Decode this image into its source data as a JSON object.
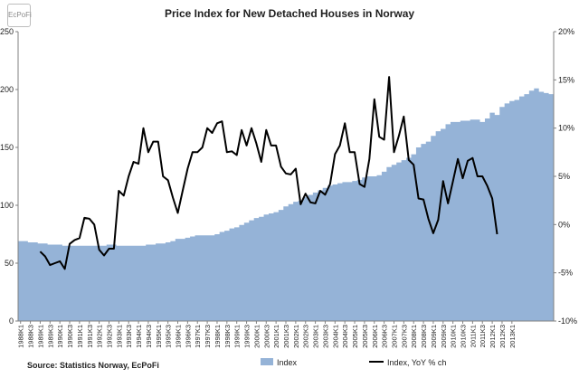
{
  "chart_data": {
    "type": "area",
    "title": "Price Index for New Detached Houses in Norway",
    "logo_text": "EcPoFi",
    "source": "Source: Statistics Norway, EcPoFi",
    "y_left": {
      "lim": [
        0,
        250
      ],
      "ticks": [
        "0",
        "50",
        "100",
        "150",
        "200",
        "250"
      ],
      "tick_values": [
        0,
        50,
        100,
        150,
        200,
        250
      ]
    },
    "y_right": {
      "lim": [
        -10,
        20
      ],
      "ticks": [
        "-10%",
        "-5%",
        "0%",
        "5%",
        "10%",
        "15%",
        "20%"
      ],
      "tick_values": [
        -10,
        -5,
        0,
        5,
        10,
        15,
        20
      ]
    },
    "x_tick_labels": [
      "1988K1",
      "1988K3",
      "1989K1",
      "1989K3",
      "1990K1",
      "1990K3",
      "1991K1",
      "1991K3",
      "1992K1",
      "1992K3",
      "1993K1",
      "1993K3",
      "1994K1",
      "1994K3",
      "1995K1",
      "1995K3",
      "1996K1",
      "1996K3",
      "1997K1",
      "1997K3",
      "1998K1",
      "1998K3",
      "1999K1",
      "1999K3",
      "2000K1",
      "2000K3",
      "2001K1",
      "2001K3",
      "2002K1",
      "2002K3",
      "2003K1",
      "2003K3",
      "2004K1",
      "2004K3",
      "2005K1",
      "2005K3",
      "2006K1",
      "2006K3",
      "2007K1",
      "2007K3",
      "2008K1",
      "2008K3",
      "2009K1",
      "2009K3",
      "2010K1",
      "2010K3",
      "2011K1",
      "2011K3",
      "2012K1",
      "2012K3",
      "2013K1"
    ],
    "series": [
      {
        "name": "Index",
        "axis": "left",
        "color": "#95b3d7",
        "values": [
          69,
          69,
          68,
          68,
          67,
          67,
          66,
          66,
          66,
          65,
          65,
          65,
          65,
          65,
          65,
          65,
          65,
          65,
          66,
          66,
          65,
          65,
          65,
          65,
          65,
          65,
          66,
          66,
          67,
          67,
          68,
          69,
          71,
          71,
          72,
          73,
          74,
          74,
          74,
          74,
          75,
          77,
          78,
          80,
          81,
          83,
          85,
          87,
          89,
          90,
          92,
          93,
          94,
          96,
          99,
          101,
          103,
          104,
          107,
          109,
          111,
          113,
          115,
          117,
          118,
          119,
          120,
          120,
          121,
          122,
          124,
          125,
          125,
          126,
          129,
          133,
          135,
          137,
          139,
          141,
          144,
          150,
          153,
          155,
          160,
          164,
          166,
          170,
          172,
          172,
          173,
          173,
          174,
          174,
          172,
          175,
          180,
          178,
          185,
          188,
          190,
          191,
          194,
          196,
          199,
          201,
          198,
          197,
          196
        ]
      },
      {
        "name": "Index, YoY % ch",
        "axis": "right",
        "color": "#000000",
        "start_index": 4,
        "values": [
          -2.8,
          -3.3,
          -4.2,
          -4.0,
          -3.8,
          -4.6,
          -2.0,
          -1.6,
          -1.4,
          0.7,
          0.6,
          0.0,
          -2.6,
          -3.2,
          -2.5,
          -2.5,
          3.5,
          3.0,
          5.0,
          6.5,
          6.3,
          10.0,
          7.5,
          8.6,
          8.6,
          5.0,
          4.6,
          2.8,
          1.2,
          3.5,
          5.8,
          7.5,
          7.5,
          8.0,
          10.0,
          9.5,
          10.5,
          10.7,
          7.5,
          7.6,
          7.2,
          9.8,
          8.2,
          10.0,
          8.4,
          6.5,
          9.8,
          8.2,
          8.2,
          6.0,
          5.3,
          5.2,
          5.8,
          2.1,
          3.2,
          2.3,
          2.2,
          3.5,
          3.1,
          4.2,
          7.3,
          8.2,
          10.5,
          7.5,
          7.5,
          4.2,
          3.9,
          6.8,
          13.0,
          9.1,
          8.8,
          15.3,
          7.5,
          9.2,
          11.2,
          6.7,
          6.2,
          2.7,
          2.6,
          0.6,
          -0.9,
          0.5,
          4.5,
          2.2,
          4.5,
          6.8,
          4.8,
          6.6,
          6.9,
          5.0,
          5.0,
          4.0,
          2.7,
          -1.0
        ]
      }
    ],
    "legend": {
      "placement": "bottom",
      "labels": [
        "Index",
        "Index, YoY % ch"
      ]
    },
    "grid": false
  }
}
